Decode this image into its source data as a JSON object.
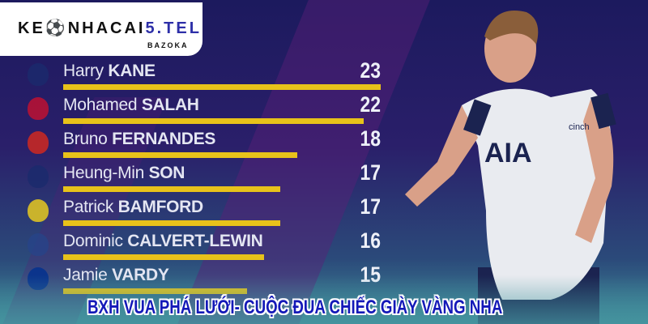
{
  "logo": {
    "main_prefix": "KE",
    "main_mid": "NHACAI",
    "main_suffix": "5.TEL",
    "sub": "BAZOKA"
  },
  "scorers": [
    {
      "first": "Harry",
      "last": "KANE",
      "goals": 23,
      "club_color": "#1a2b6d"
    },
    {
      "first": "Mohamed",
      "last": "SALAH",
      "goals": 22,
      "club_color": "#c8102e"
    },
    {
      "first": "Bruno",
      "last": "FERNANDES",
      "goals": 18,
      "club_color": "#da291c"
    },
    {
      "first": "Heung-Min",
      "last": "SON",
      "goals": 17,
      "club_color": "#1a2b6d"
    },
    {
      "first": "Patrick",
      "last": "BAMFORD",
      "goals": 17,
      "club_color": "#f3d21a"
    },
    {
      "first": "Dominic",
      "last": "CALVERT-LEWIN",
      "goals": 16,
      "club_color": "#274488"
    },
    {
      "first": "Jamie",
      "last": "VARDY",
      "goals": 15,
      "club_color": "#003090"
    }
  ],
  "player": {
    "sponsor": "AIA",
    "kit_brand": "cinch"
  },
  "caption": "BXH VUA PHÁ LƯỚI- CUỘC ĐUA CHIẾC GIÀY VÀNG NHA",
  "colors": {
    "bar": "#e8c21a",
    "caption": "#1419b8"
  }
}
